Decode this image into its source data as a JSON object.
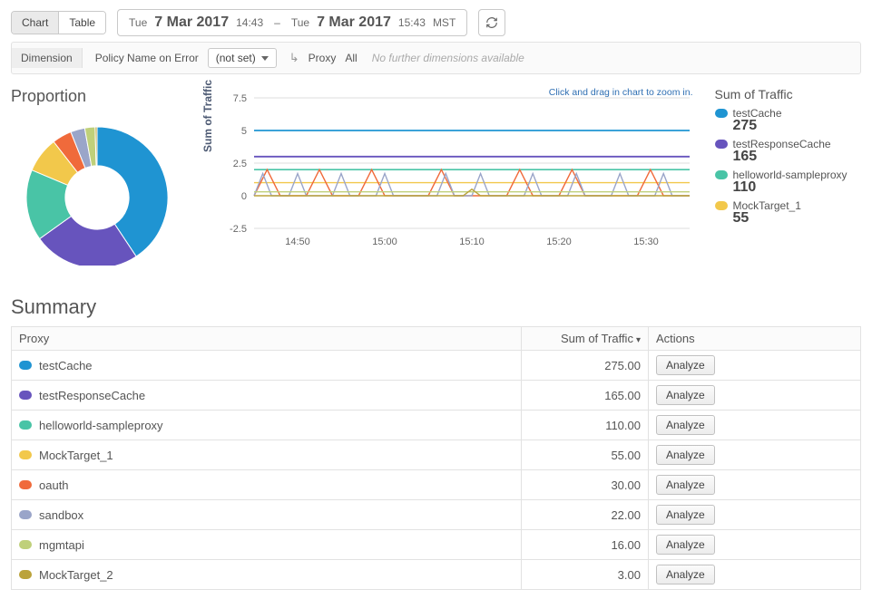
{
  "toolbar": {
    "view_toggle": {
      "chart": "Chart",
      "table": "Table",
      "active": "chart"
    },
    "date_range": {
      "from_day": "Tue",
      "from_date": "7 Mar 2017",
      "from_time": "14:43",
      "sep": "–",
      "to_day": "Tue",
      "to_date": "7 Mar 2017",
      "to_time": "15:43",
      "tz": "MST"
    }
  },
  "dimension": {
    "label": "Dimension",
    "policy_label": "Policy Name on Error",
    "policy_value": "(not set)",
    "proxy_label": "Proxy",
    "all_label": "All",
    "no_more": "No further dimensions available"
  },
  "proportion": {
    "title": "Proportion",
    "type": "donut",
    "inner_ratio": 0.45,
    "background_color": "#ffffff",
    "slices": [
      {
        "name": "testCache",
        "value": 275,
        "color": "#1f94d2"
      },
      {
        "name": "testResponseCache",
        "value": 165,
        "color": "#6754bd"
      },
      {
        "name": "helloworld-sampleproxy",
        "value": 110,
        "color": "#49c4a6"
      },
      {
        "name": "MockTarget_1",
        "value": 55,
        "color": "#f2c84b"
      },
      {
        "name": "oauth",
        "value": 30,
        "color": "#f06a3b"
      },
      {
        "name": "sandbox",
        "value": 22,
        "color": "#9aa5c9"
      },
      {
        "name": "mgmtapi",
        "value": 16,
        "color": "#bfd07a"
      },
      {
        "name": "MockTarget_2",
        "value": 3,
        "color": "#bba33b"
      }
    ]
  },
  "linechart": {
    "type": "line",
    "zoom_hint": "Click and drag in chart to zoom in.",
    "y_label": "Sum of Traffic",
    "ylim": [
      -2.5,
      7.5
    ],
    "yticks": [
      -2.5,
      0,
      2.5,
      5,
      7.5
    ],
    "xticks": [
      "14:50",
      "15:00",
      "15:10",
      "15:20",
      "15:30"
    ],
    "grid_color": "#dcdcdc",
    "axis_color": "#555555",
    "background_color": "#ffffff",
    "tick_fontsize": 11,
    "series": [
      {
        "name": "testCache",
        "color": "#1f94d2",
        "stroke_width": 1.8,
        "points": [
          [
            0,
            5
          ],
          [
            10,
            5
          ],
          [
            20,
            5
          ],
          [
            30,
            5
          ],
          [
            40,
            5
          ],
          [
            50,
            5
          ],
          [
            60,
            5
          ],
          [
            70,
            5
          ],
          [
            80,
            5
          ],
          [
            90,
            5
          ],
          [
            100,
            5
          ]
        ]
      },
      {
        "name": "testResponseCache",
        "color": "#6754bd",
        "stroke_width": 1.8,
        "points": [
          [
            0,
            3
          ],
          [
            10,
            3
          ],
          [
            20,
            3
          ],
          [
            30,
            3
          ],
          [
            40,
            3
          ],
          [
            50,
            3
          ],
          [
            60,
            3
          ],
          [
            70,
            3
          ],
          [
            80,
            3
          ],
          [
            90,
            3
          ],
          [
            100,
            3
          ]
        ]
      },
      {
        "name": "helloworld-sampleproxy",
        "color": "#49c4a6",
        "stroke_width": 1.6,
        "points": [
          [
            0,
            2
          ],
          [
            10,
            2
          ],
          [
            20,
            2
          ],
          [
            30,
            2
          ],
          [
            40,
            2
          ],
          [
            50,
            2
          ],
          [
            60,
            2
          ],
          [
            70,
            2
          ],
          [
            80,
            2
          ],
          [
            90,
            2
          ],
          [
            100,
            2
          ]
        ]
      },
      {
        "name": "MockTarget_1",
        "color": "#f2c84b",
        "stroke_width": 1.4,
        "points": [
          [
            0,
            1
          ],
          [
            4,
            1
          ],
          [
            8,
            1
          ],
          [
            12,
            1
          ],
          [
            16,
            1
          ],
          [
            20,
            1
          ],
          [
            24,
            1
          ],
          [
            28,
            1
          ],
          [
            32,
            1
          ],
          [
            36,
            1
          ],
          [
            40,
            1
          ],
          [
            44,
            1
          ],
          [
            48,
            1
          ],
          [
            52,
            1
          ],
          [
            56,
            1
          ],
          [
            60,
            1
          ],
          [
            64,
            1
          ],
          [
            68,
            1
          ],
          [
            72,
            1
          ],
          [
            76,
            1
          ],
          [
            80,
            1
          ],
          [
            84,
            1
          ],
          [
            88,
            1
          ],
          [
            92,
            1
          ],
          [
            96,
            1
          ],
          [
            100,
            1
          ]
        ]
      },
      {
        "name": "oauth",
        "color": "#f06a3b",
        "stroke_width": 1.4,
        "points": [
          [
            0,
            0
          ],
          [
            3,
            2
          ],
          [
            6,
            0
          ],
          [
            12,
            0
          ],
          [
            15,
            2
          ],
          [
            18,
            0
          ],
          [
            24,
            0
          ],
          [
            27,
            2
          ],
          [
            30,
            0
          ],
          [
            40,
            0
          ],
          [
            43,
            2
          ],
          [
            46,
            0
          ],
          [
            58,
            0
          ],
          [
            61,
            2
          ],
          [
            64,
            0
          ],
          [
            70,
            0
          ],
          [
            73,
            2
          ],
          [
            76,
            0
          ],
          [
            88,
            0
          ],
          [
            91,
            2
          ],
          [
            94,
            0
          ],
          [
            100,
            0
          ]
        ]
      },
      {
        "name": "sandbox",
        "color": "#9aa5c9",
        "stroke_width": 1.4,
        "points": [
          [
            0,
            0
          ],
          [
            2,
            1.7
          ],
          [
            4,
            0
          ],
          [
            8,
            0
          ],
          [
            10,
            1.7
          ],
          [
            12,
            0
          ],
          [
            18,
            0
          ],
          [
            20,
            1.7
          ],
          [
            22,
            0
          ],
          [
            28,
            0
          ],
          [
            30,
            1.7
          ],
          [
            32,
            0
          ],
          [
            42,
            0
          ],
          [
            44,
            1.7
          ],
          [
            46,
            0
          ],
          [
            50,
            0
          ],
          [
            52,
            1.7
          ],
          [
            54,
            0
          ],
          [
            62,
            0
          ],
          [
            64,
            1.7
          ],
          [
            66,
            0
          ],
          [
            72,
            0
          ],
          [
            74,
            1.7
          ],
          [
            76,
            0
          ],
          [
            82,
            0
          ],
          [
            84,
            1.7
          ],
          [
            86,
            0
          ],
          [
            92,
            0
          ],
          [
            94,
            1.7
          ],
          [
            96,
            0
          ],
          [
            100,
            0
          ]
        ]
      },
      {
        "name": "mgmtapi",
        "color": "#bfd07a",
        "stroke_width": 1.4,
        "points": [
          [
            0,
            0.3
          ],
          [
            20,
            0.3
          ],
          [
            40,
            0.3
          ],
          [
            60,
            0.3
          ],
          [
            80,
            0.3
          ],
          [
            100,
            0.3
          ]
        ]
      },
      {
        "name": "MockTarget_2",
        "color": "#bba33b",
        "stroke_width": 1.4,
        "points": [
          [
            0,
            0
          ],
          [
            48,
            0
          ],
          [
            50,
            0.5
          ],
          [
            52,
            0
          ],
          [
            100,
            0
          ]
        ]
      }
    ]
  },
  "legend": {
    "title": "Sum of Traffic",
    "items": [
      {
        "label": "testCache",
        "value": "275",
        "color": "#1f94d2"
      },
      {
        "label": "testResponseCache",
        "value": "165",
        "color": "#6754bd"
      },
      {
        "label": "helloworld-sampleproxy",
        "value": "110",
        "color": "#49c4a6"
      },
      {
        "label": "MockTarget_1",
        "value": "55",
        "color": "#f2c84b"
      }
    ]
  },
  "summary": {
    "title": "Summary",
    "columns": {
      "proxy": "Proxy",
      "traffic": "Sum of Traffic",
      "actions": "Actions"
    },
    "analyze_label": "Analyze",
    "rows": [
      {
        "proxy": "testCache",
        "traffic": "275.00",
        "color": "#1f94d2"
      },
      {
        "proxy": "testResponseCache",
        "traffic": "165.00",
        "color": "#6754bd"
      },
      {
        "proxy": "helloworld-sampleproxy",
        "traffic": "110.00",
        "color": "#49c4a6"
      },
      {
        "proxy": "MockTarget_1",
        "traffic": "55.00",
        "color": "#f2c84b"
      },
      {
        "proxy": "oauth",
        "traffic": "30.00",
        "color": "#f06a3b"
      },
      {
        "proxy": "sandbox",
        "traffic": "22.00",
        "color": "#9aa5c9"
      },
      {
        "proxy": "mgmtapi",
        "traffic": "16.00",
        "color": "#bfd07a"
      },
      {
        "proxy": "MockTarget_2",
        "traffic": "3.00",
        "color": "#bba33b"
      }
    ]
  }
}
